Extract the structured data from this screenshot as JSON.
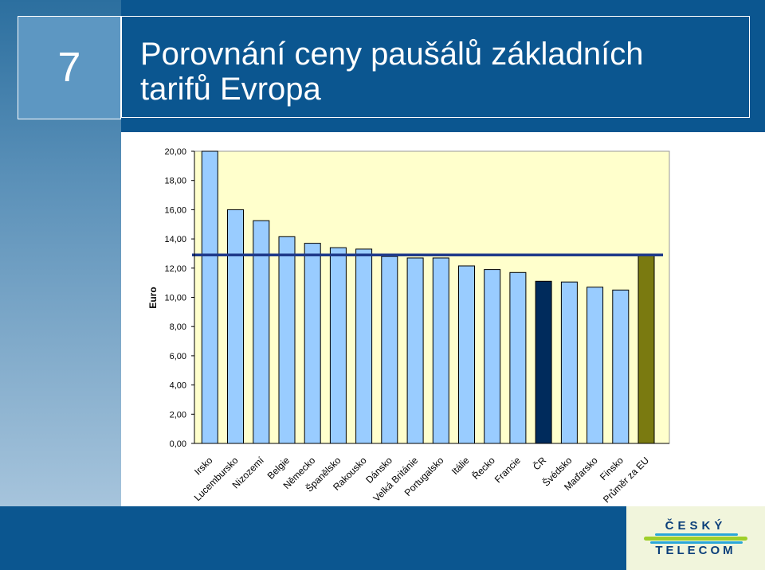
{
  "slide": {
    "number": "7",
    "title_line1": "Porovnání ceny paušálů základních",
    "title_line2": "tarifů Evropa"
  },
  "logo": {
    "line1": "ČESKÝ",
    "line2": "TELECOM"
  },
  "colors": {
    "header": "#0b5690",
    "plot_bg": "#ffffcc",
    "bar_default": "#99ccff",
    "bar_cr": "#002b5c",
    "bar_eu": "#7a7a10",
    "avg_line": "#1f3a8a"
  },
  "chart_data": {
    "type": "bar",
    "ylabel": "Euro",
    "ylim": [
      0,
      20
    ],
    "yticks": [
      "0,00",
      "2,00",
      "4,00",
      "6,00",
      "8,00",
      "10,00",
      "12,00",
      "14,00",
      "16,00",
      "18,00",
      "20,00"
    ],
    "categories": [
      "Irsko",
      "Lucembursko",
      "Nizozemí",
      "Belgie",
      "Německo",
      "Španělsko",
      "Rakousko",
      "Dánsko",
      "Velká Británie",
      "Portugalsko",
      "Itálie",
      "Řecko",
      "Francie",
      "ČR",
      "Švédsko",
      "Maďarsko",
      "Finsko",
      "Průměr za EU"
    ],
    "values": [
      20.0,
      16.0,
      15.25,
      14.15,
      13.7,
      13.4,
      13.3,
      12.8,
      12.7,
      12.7,
      12.15,
      11.9,
      11.7,
      11.1,
      11.05,
      10.7,
      10.5,
      12.9
    ],
    "bar_colors": [
      "#99ccff",
      "#99ccff",
      "#99ccff",
      "#99ccff",
      "#99ccff",
      "#99ccff",
      "#99ccff",
      "#99ccff",
      "#99ccff",
      "#99ccff",
      "#99ccff",
      "#99ccff",
      "#99ccff",
      "#002b5c",
      "#99ccff",
      "#99ccff",
      "#99ccff",
      "#7a7a10"
    ],
    "reference_line": 12.9,
    "grid": false,
    "legend": "none"
  }
}
